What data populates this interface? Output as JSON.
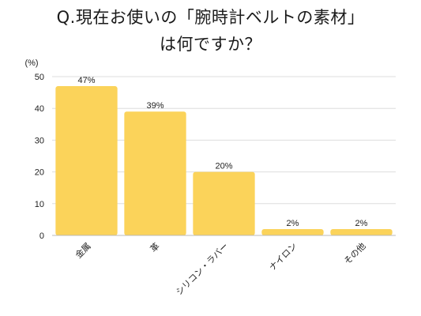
{
  "title_line1": "Q.現在お使いの「腕時計ベルトの素材」",
  "title_line2": "は何ですか？",
  "chart_data": {
    "type": "bar",
    "categories": [
      "金属",
      "革",
      "シリコン・ラバー",
      "ナイロン",
      "その他"
    ],
    "values": [
      47,
      39,
      20,
      2,
      2
    ],
    "data_labels": [
      "47%",
      "39%",
      "20%",
      "2%",
      "2%"
    ],
    "ylabel": "(%)",
    "ylim": [
      0,
      50
    ],
    "yticks": [
      0,
      10,
      20,
      30,
      40,
      50
    ],
    "grid": true,
    "bar_color": "#FBD35A",
    "grid_color": "#DDDDDD"
  }
}
